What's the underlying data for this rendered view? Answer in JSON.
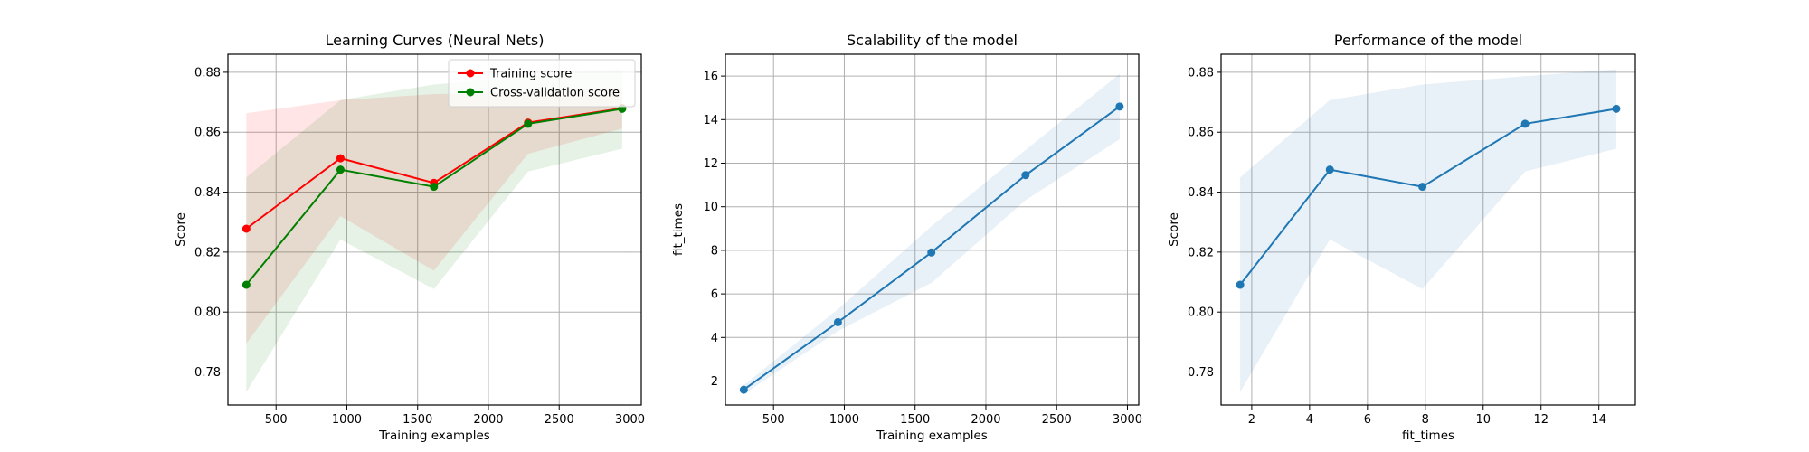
{
  "chart_data": [
    {
      "type": "line",
      "title": "Learning Curves (Neural Nets)",
      "xlabel": "Training examples",
      "ylabel": "Score",
      "xlim": [
        160,
        3080
      ],
      "ylim": [
        0.769,
        0.886
      ],
      "xticks": [
        500,
        1000,
        1500,
        2000,
        2500,
        3000
      ],
      "yticks": [
        0.78,
        0.8,
        0.82,
        0.84,
        0.86,
        0.88
      ],
      "ytick_decimals": 2,
      "grid": true,
      "legend": "top-right",
      "x": [
        290,
        955,
        1615,
        2280,
        2945
      ],
      "series": [
        {
          "name": "Training score",
          "color": "#ff0000",
          "band_color": "#ff0000",
          "values": [
            0.8278,
            0.8513,
            0.8431,
            0.8632,
            0.868
          ],
          "lower": [
            0.7895,
            0.832,
            0.8138,
            0.8528,
            0.8612
          ],
          "upper": [
            0.8663,
            0.8707,
            0.8727,
            0.8735,
            0.8749
          ]
        },
        {
          "name": "Cross-validation score",
          "color": "#008000",
          "band_color": "#008000",
          "values": [
            0.8091,
            0.8475,
            0.8418,
            0.8628,
            0.8678
          ],
          "lower": [
            0.7733,
            0.8242,
            0.8077,
            0.8469,
            0.8545
          ],
          "upper": [
            0.8449,
            0.8707,
            0.8759,
            0.8787,
            0.881
          ]
        }
      ]
    },
    {
      "type": "line",
      "title": "Scalability of the model",
      "xlabel": "Training examples",
      "ylabel": "fit_times",
      "xlim": [
        160,
        3080
      ],
      "ylim": [
        0.9,
        17.0
      ],
      "xticks": [
        500,
        1000,
        1500,
        2000,
        2500,
        3000
      ],
      "yticks": [
        2,
        4,
        6,
        8,
        10,
        12,
        14,
        16
      ],
      "ytick_decimals": 0,
      "grid": true,
      "x": [
        290,
        955,
        1615,
        2280,
        2945
      ],
      "series": [
        {
          "name": "",
          "color": "#1f77b4",
          "band_color": "#1f77b4",
          "values": [
            1.6,
            4.7,
            7.9,
            11.45,
            14.6
          ],
          "lower": [
            1.4,
            4.3,
            6.5,
            10.3,
            13.1
          ],
          "upper": [
            1.8,
            5.3,
            9.1,
            12.6,
            16.1
          ]
        }
      ]
    },
    {
      "type": "line",
      "title": "Performance of the model",
      "xlabel": "fit_times",
      "ylabel": "Score",
      "xlim": [
        0.94,
        15.26
      ],
      "ylim": [
        0.769,
        0.886
      ],
      "xticks": [
        2,
        4,
        6,
        8,
        10,
        12,
        14
      ],
      "yticks": [
        0.78,
        0.8,
        0.82,
        0.84,
        0.86,
        0.88
      ],
      "ytick_decimals": 2,
      "grid": true,
      "x": [
        1.6,
        4.7,
        7.9,
        11.45,
        14.6
      ],
      "series": [
        {
          "name": "",
          "color": "#1f77b4",
          "band_color": "#1f77b4",
          "values": [
            0.8091,
            0.8475,
            0.8418,
            0.8628,
            0.8678
          ],
          "lower": [
            0.7733,
            0.8242,
            0.8077,
            0.8469,
            0.8545
          ],
          "upper": [
            0.8449,
            0.8707,
            0.8759,
            0.8787,
            0.881
          ]
        }
      ]
    }
  ]
}
